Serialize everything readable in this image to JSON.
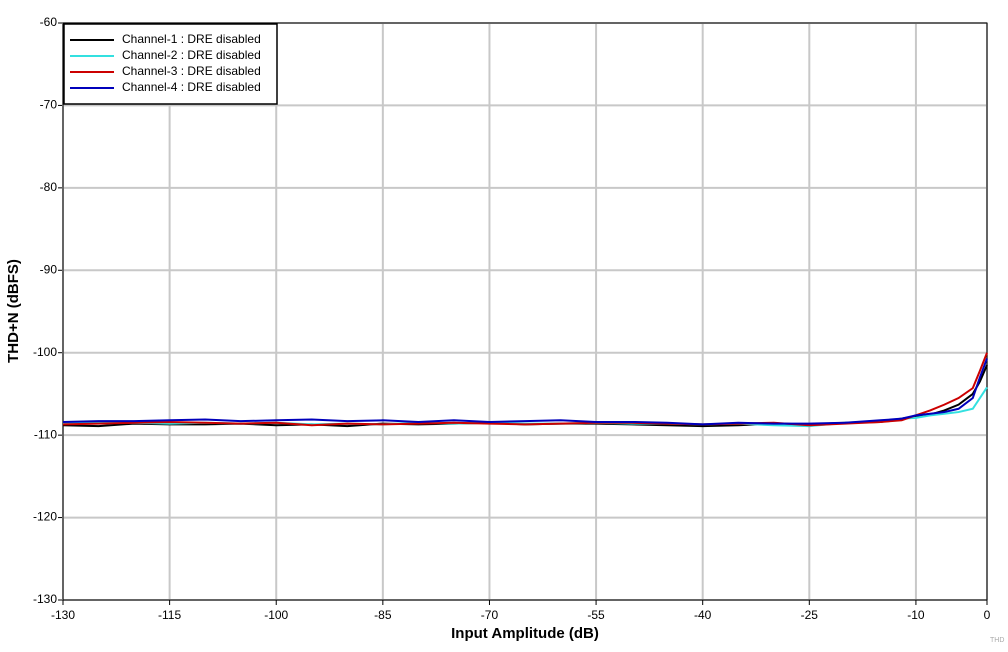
{
  "chart_data": {
    "type": "line",
    "xlabel": "Input Amplitude (dB)",
    "ylabel": "THD+N (dBFS)",
    "watermark": "THD",
    "x": [
      -130,
      -125,
      -120,
      -115,
      -110,
      -105,
      -100,
      -95,
      -90,
      -85,
      -80,
      -75,
      -70,
      -65,
      -60,
      -55,
      -50,
      -45,
      -40,
      -35,
      -30,
      -25,
      -20,
      -15,
      -12,
      -10,
      -8,
      -6,
      -4,
      -2,
      -1,
      0
    ],
    "series": [
      {
        "name": "Channel-1 : DRE disabled",
        "color": "#000000",
        "values": [
          -108.8,
          -108.9,
          -108.6,
          -108.7,
          -108.7,
          -108.6,
          -108.8,
          -108.7,
          -108.9,
          -108.6,
          -108.7,
          -108.6,
          -108.5,
          -108.7,
          -108.6,
          -108.6,
          -108.7,
          -108.8,
          -108.9,
          -108.8,
          -108.6,
          -108.7,
          -108.5,
          -108.4,
          -108.0,
          -107.7,
          -107.5,
          -107.0,
          -106.3,
          -105.0,
          -103.5,
          -101.5
        ]
      },
      {
        "name": "Channel-2 : DRE disabled",
        "color": "#33e0e0",
        "values": [
          -108.5,
          -108.4,
          -108.5,
          -108.6,
          -108.5,
          -108.6,
          -108.5,
          -108.7,
          -108.6,
          -108.7,
          -108.5,
          -108.6,
          -108.5,
          -108.6,
          -108.6,
          -108.5,
          -108.6,
          -108.6,
          -108.7,
          -108.6,
          -108.8,
          -108.9,
          -108.5,
          -108.3,
          -108.0,
          -107.9,
          -107.6,
          -107.4,
          -107.2,
          -106.8,
          -105.5,
          -104.2
        ]
      },
      {
        "name": "Channel-3 : DRE disabled",
        "color": "#cc0000",
        "values": [
          -108.7,
          -108.6,
          -108.5,
          -108.4,
          -108.5,
          -108.6,
          -108.5,
          -108.8,
          -108.6,
          -108.7,
          -108.6,
          -108.5,
          -108.6,
          -108.7,
          -108.6,
          -108.5,
          -108.5,
          -108.6,
          -108.7,
          -108.6,
          -108.5,
          -108.8,
          -108.6,
          -108.4,
          -108.2,
          -107.6,
          -107.0,
          -106.3,
          -105.5,
          -104.3,
          -102.2,
          -100.0
        ]
      },
      {
        "name": "Channel-4 : DRE disabled",
        "color": "#0000bb",
        "values": [
          -108.4,
          -108.3,
          -108.3,
          -108.2,
          -108.1,
          -108.3,
          -108.2,
          -108.1,
          -108.3,
          -108.2,
          -108.4,
          -108.2,
          -108.4,
          -108.3,
          -108.2,
          -108.4,
          -108.4,
          -108.5,
          -108.7,
          -108.5,
          -108.6,
          -108.6,
          -108.5,
          -108.2,
          -108.0,
          -107.6,
          -107.4,
          -107.2,
          -106.8,
          -105.5,
          -103.0,
          -100.7
        ]
      }
    ],
    "xlim": [
      -130,
      0
    ],
    "xticks": [
      -130,
      -115,
      -100,
      -85,
      -70,
      -55,
      -40,
      -25,
      -10,
      0
    ],
    "ylim": [
      -130,
      -60
    ],
    "yticks": [
      -60,
      -70,
      -80,
      -90,
      -100,
      -110,
      -120,
      -130
    ],
    "grid": true,
    "legend": "top-left"
  }
}
